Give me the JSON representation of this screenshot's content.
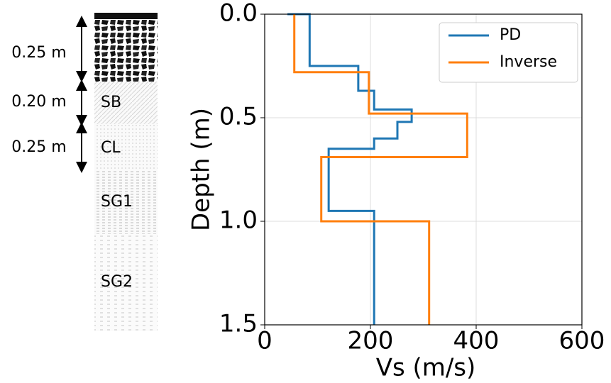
{
  "chart_data": {
    "type": "line",
    "xlabel": "Vs (m/s)",
    "ylabel": "Depth (m)",
    "xlim": [
      0,
      600
    ],
    "xticks": [
      0,
      200,
      400,
      600
    ],
    "ylim": [
      0,
      1.5
    ],
    "y_inverted": true,
    "yticks": [
      {
        "value": 0,
        "label": "0.0"
      },
      {
        "value": 0.5,
        "label": "0.5"
      },
      {
        "value": 1.0,
        "label": "1.0"
      },
      {
        "value": 1.5,
        "label": "1.5"
      }
    ],
    "grid": true,
    "legend": "upper right",
    "series": [
      {
        "name": "PD",
        "color": "#1f77b4",
        "x": [
          43,
          85,
          85,
          177,
          177,
          207,
          207,
          278,
          278,
          251,
          251,
          207,
          207,
          121,
          121,
          207,
          207
        ],
        "values": [
          0,
          0,
          0.25,
          0.25,
          0.37,
          0.37,
          0.46,
          0.46,
          0.52,
          0.52,
          0.6,
          0.6,
          0.65,
          0.65,
          0.95,
          0.95,
          1.5
        ]
      },
      {
        "name": "Inverse",
        "color": "#ff7f0e",
        "x": [
          56,
          56,
          197,
          197,
          383,
          383,
          107,
          107,
          311,
          311
        ],
        "values": [
          0,
          0.28,
          0.28,
          0.48,
          0.48,
          0.69,
          0.69,
          1.0,
          1.0,
          1.5
        ]
      }
    ]
  },
  "profile": {
    "thickness_labels": [
      "0.25 m",
      "0.20 m",
      "0.25 m"
    ],
    "layer_labels": [
      "SB",
      "CL",
      "SG1",
      "SG2"
    ]
  }
}
